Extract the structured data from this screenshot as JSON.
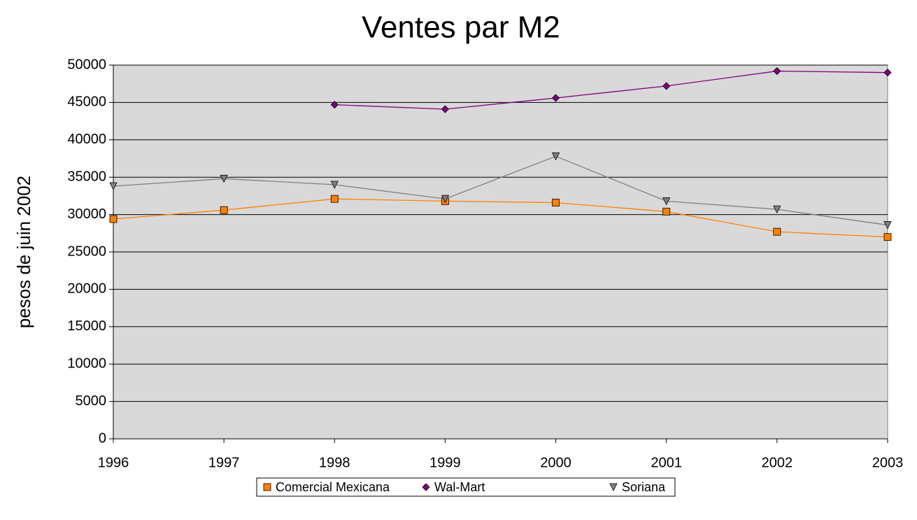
{
  "chart_data": {
    "type": "line",
    "title": "Ventes par M2",
    "y_label": "pesos de juin 2002",
    "categories": [
      "1996",
      "1997",
      "1998",
      "1999",
      "2000",
      "2001",
      "2002",
      "2003"
    ],
    "series": [
      {
        "name": "Comercial Mexicana",
        "color": "#ff8000",
        "marker": "square",
        "values": [
          29400,
          30600,
          32100,
          31800,
          31600,
          30400,
          27700,
          27000
        ]
      },
      {
        "name": "Wal-Mart",
        "color": "#800080",
        "marker": "diamond",
        "values": [
          null,
          null,
          44700,
          44100,
          45600,
          47200,
          49200,
          49000
        ]
      },
      {
        "name": "Soriana",
        "color": "#808080",
        "marker": "triangle-down",
        "values": [
          33800,
          34800,
          34000,
          32100,
          37800,
          31800,
          30700,
          28600
        ]
      }
    ],
    "ylim": [
      0,
      50000
    ],
    "yticks": [
      0,
      5000,
      10000,
      15000,
      20000,
      25000,
      30000,
      35000,
      40000,
      45000,
      50000
    ],
    "grid": true,
    "legend": "bottom"
  }
}
